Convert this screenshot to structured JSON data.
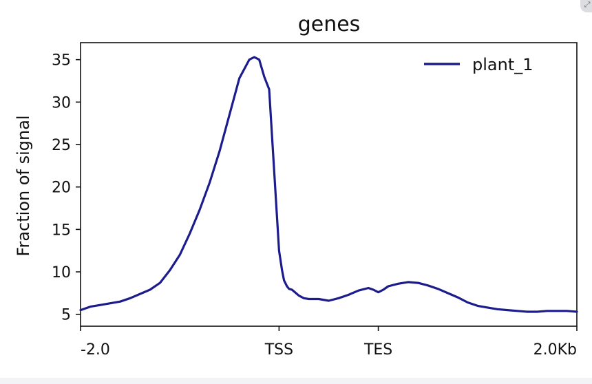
{
  "chart_data": {
    "type": "line",
    "title": "genes",
    "xlabel": "",
    "ylabel": "Fraction of signal",
    "x_tick_labels": [
      "-2.0",
      "TSS",
      "TES",
      "2.0Kb"
    ],
    "x_tick_positions": [
      0,
      2000,
      3000,
      5000
    ],
    "xlim": [
      0,
      5000
    ],
    "ylim": [
      3.6,
      37
    ],
    "y_ticks": [
      5,
      10,
      15,
      20,
      25,
      30,
      35
    ],
    "y_tick_labels": [
      "5",
      "10",
      "15",
      "20",
      "25",
      "30",
      "35"
    ],
    "grid": false,
    "legend_position": "top-right",
    "series": [
      {
        "name": "plant_1",
        "color": "#1c1c8c",
        "x": [
          0,
          100,
          200,
          300,
          400,
          500,
          600,
          700,
          800,
          900,
          1000,
          1100,
          1200,
          1300,
          1400,
          1500,
          1600,
          1700,
          1750,
          1800,
          1850,
          1900,
          1950,
          2000,
          2030,
          2050,
          2080,
          2100,
          2130,
          2150,
          2200,
          2250,
          2300,
          2400,
          2500,
          2600,
          2700,
          2800,
          2900,
          2950,
          3000,
          3050,
          3100,
          3200,
          3300,
          3400,
          3500,
          3600,
          3700,
          3800,
          3900,
          4000,
          4100,
          4200,
          4300,
          4400,
          4500,
          4600,
          4700,
          4800,
          4900,
          5000
        ],
        "values": [
          5.5,
          5.9,
          6.1,
          6.3,
          6.5,
          6.9,
          7.4,
          7.9,
          8.7,
          10.2,
          12.0,
          14.5,
          17.3,
          20.5,
          24.2,
          28.5,
          32.8,
          35.0,
          35.3,
          35.0,
          33.0,
          31.5,
          22.0,
          12.5,
          10.2,
          9.0,
          8.3,
          8.0,
          7.9,
          7.7,
          7.2,
          6.9,
          6.8,
          6.8,
          6.6,
          6.9,
          7.3,
          7.8,
          8.1,
          7.9,
          7.6,
          7.9,
          8.3,
          8.6,
          8.8,
          8.7,
          8.4,
          8.0,
          7.5,
          7.0,
          6.4,
          6.0,
          5.8,
          5.6,
          5.5,
          5.4,
          5.3,
          5.3,
          5.4,
          5.4,
          5.4,
          5.3
        ]
      }
    ]
  }
}
